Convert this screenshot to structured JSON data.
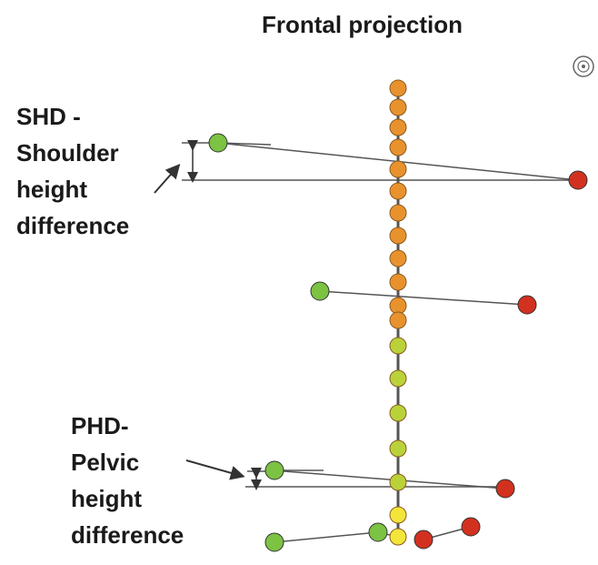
{
  "title": "Frontal projection",
  "shd_label": [
    "SHD -",
    "Shoulder",
    "height",
    "difference"
  ],
  "phd_label": [
    "PHD-",
    "Pelvic",
    "height",
    "difference"
  ],
  "colors": {
    "orange": "#e8922e",
    "green_yellow": "#b9d23a",
    "yellow": "#f3e53a",
    "green": "#7cc243",
    "red": "#d2311f",
    "line": "#555555"
  },
  "icons": [
    "rotation-target-icon"
  ]
}
